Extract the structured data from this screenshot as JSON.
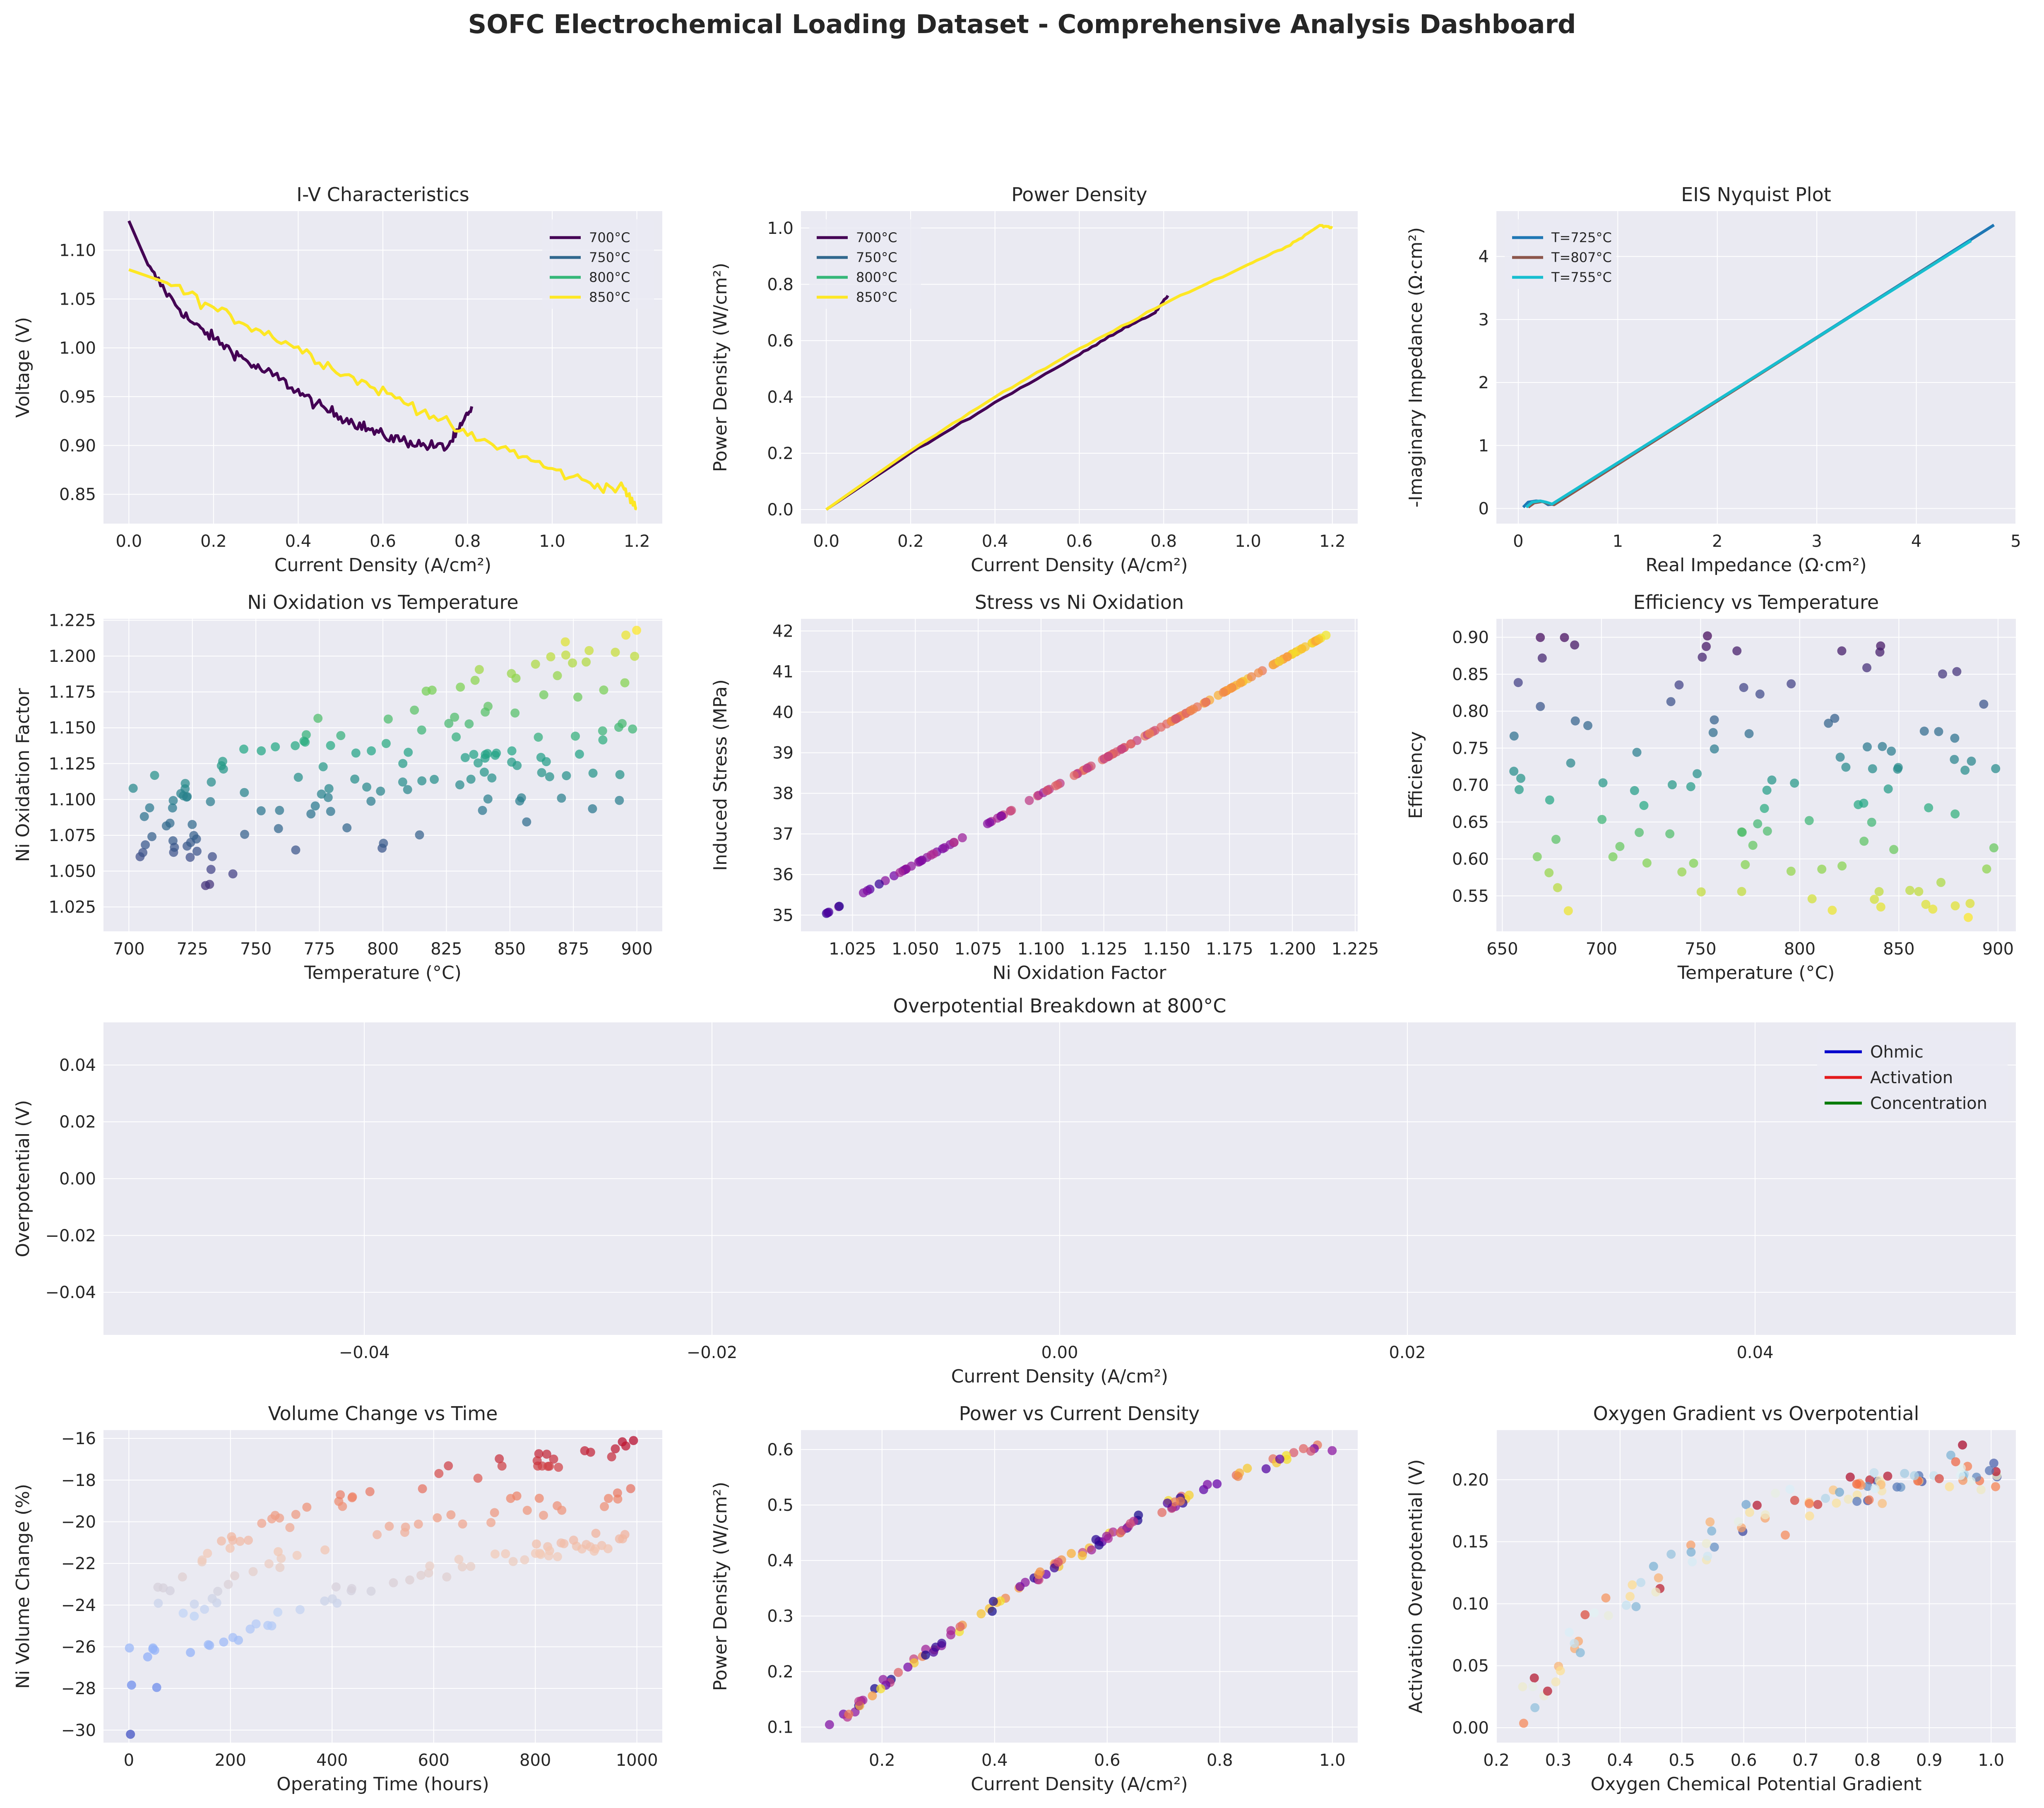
{
  "figure": {
    "title": "SOFC Electrochemical Loading Dataset - Comprehensive Analysis Dashboard",
    "background": "#ffffff",
    "panel_bg": "#eaeaf2",
    "grid_color": "#ffffff"
  },
  "chart_data": [
    {
      "id": "iv",
      "type": "line",
      "title": "I-V Characteristics",
      "xlabel": "Current Density (A/cm²)",
      "ylabel": "Voltage (V)",
      "xlim": [
        -0.06,
        1.26
      ],
      "ylim": [
        0.82,
        1.14
      ],
      "xticks": [
        0.0,
        0.2,
        0.4,
        0.6,
        0.8,
        1.0,
        1.2
      ],
      "yticks": [
        0.85,
        0.9,
        0.95,
        1.0,
        1.05,
        1.1
      ],
      "tick_decimals_x": 1,
      "tick_decimals_y": 2,
      "legend": "top-right",
      "series": [
        {
          "name": "700°C",
          "color": "#440154",
          "x": [
            0.0,
            0.05,
            0.1,
            0.15,
            0.2,
            0.25,
            0.3,
            0.35,
            0.4,
            0.45,
            0.5,
            0.55,
            0.6,
            0.65,
            0.7,
            0.75,
            0.78,
            0.81
          ],
          "y": [
            1.13,
            1.08,
            1.05,
            1.025,
            1.01,
            0.995,
            0.98,
            0.97,
            0.955,
            0.94,
            0.93,
            0.92,
            0.91,
            0.905,
            0.9,
            0.898,
            0.915,
            0.94
          ]
        },
        {
          "name": "750°C",
          "color": "#31688e",
          "x": [],
          "y": []
        },
        {
          "name": "800°C",
          "color": "#35b779",
          "x": [],
          "y": []
        },
        {
          "name": "850°C",
          "color": "#fde725",
          "x": [
            0.0,
            0.1,
            0.2,
            0.3,
            0.4,
            0.5,
            0.6,
            0.7,
            0.8,
            0.9,
            1.0,
            1.1,
            1.17,
            1.2
          ],
          "y": [
            1.08,
            1.065,
            1.04,
            1.02,
            1.0,
            0.975,
            0.955,
            0.935,
            0.91,
            0.895,
            0.875,
            0.86,
            0.855,
            0.835
          ]
        }
      ]
    },
    {
      "id": "power",
      "type": "line",
      "title": "Power Density",
      "xlabel": "Current Density (A/cm²)",
      "ylabel": "Power Density (W/cm²)",
      "xlim": [
        -0.06,
        1.26
      ],
      "ylim": [
        -0.05,
        1.06
      ],
      "xticks": [
        0.0,
        0.2,
        0.4,
        0.6,
        0.8,
        1.0,
        1.2
      ],
      "yticks": [
        0.0,
        0.2,
        0.4,
        0.6,
        0.8,
        1.0
      ],
      "tick_decimals_x": 1,
      "tick_decimals_y": 1,
      "legend": "top-left",
      "series": [
        {
          "name": "700°C",
          "color": "#440154",
          "x": [
            0.0,
            0.2,
            0.4,
            0.6,
            0.7,
            0.78,
            0.81
          ],
          "y": [
            0.0,
            0.2,
            0.38,
            0.55,
            0.64,
            0.7,
            0.76
          ]
        },
        {
          "name": "750°C",
          "color": "#31688e",
          "x": [],
          "y": []
        },
        {
          "name": "800°C",
          "color": "#35b779",
          "x": [],
          "y": []
        },
        {
          "name": "850°C",
          "color": "#fde725",
          "x": [
            0.0,
            0.2,
            0.4,
            0.6,
            0.8,
            1.0,
            1.1,
            1.17,
            1.2
          ],
          "y": [
            0.0,
            0.21,
            0.4,
            0.57,
            0.73,
            0.87,
            0.94,
            1.01,
            1.0
          ]
        }
      ]
    },
    {
      "id": "eis",
      "type": "line",
      "title": "EIS Nyquist Plot",
      "xlabel": "Real Impedance (Ω·cm²)",
      "ylabel": "-Imaginary Impedance (Ω·cm²)",
      "xlim": [
        -0.22,
        5.0
      ],
      "ylim": [
        -0.24,
        4.72
      ],
      "xticks": [
        0,
        1,
        2,
        3,
        4,
        5
      ],
      "yticks": [
        0,
        1,
        2,
        3,
        4
      ],
      "tick_decimals_x": 0,
      "tick_decimals_y": 0,
      "legend": "top-left",
      "series": [
        {
          "name": "T=725°C",
          "color": "#1f77b4",
          "x": [
            0.05,
            0.1,
            0.18,
            0.25,
            0.3,
            0.36,
            4.78
          ],
          "y": [
            0.02,
            0.1,
            0.12,
            0.11,
            0.06,
            0.07,
            4.5
          ]
        },
        {
          "name": "T=807°C",
          "color": "#8c564b",
          "x": [
            0.1,
            0.16,
            0.24,
            0.3,
            0.36,
            4.22
          ],
          "y": [
            0.02,
            0.09,
            0.11,
            0.08,
            0.06,
            3.93
          ]
        },
        {
          "name": "T=755°C",
          "color": "#17becf",
          "x": [
            0.08,
            0.14,
            0.22,
            0.28,
            0.34,
            4.55
          ],
          "y": [
            0.02,
            0.1,
            0.12,
            0.1,
            0.07,
            4.25
          ]
        }
      ]
    },
    {
      "id": "niox_temp",
      "type": "scatter",
      "title": "Ni Oxidation vs Temperature",
      "xlabel": "Temperature (°C)",
      "ylabel": "Ni Oxidation Factor",
      "xlim": [
        690,
        910
      ],
      "ylim": [
        1.008,
        1.226
      ],
      "xticks": [
        700,
        725,
        750,
        775,
        800,
        825,
        850,
        875,
        900
      ],
      "yticks": [
        1.025,
        1.05,
        1.075,
        1.1,
        1.125,
        1.15,
        1.175,
        1.2,
        1.225
      ],
      "tick_decimals_x": 0,
      "tick_decimals_y": 3,
      "colormap": "viridis"
    },
    {
      "id": "stress",
      "type": "scatter",
      "title": "Stress vs Ni Oxidation",
      "xlabel": "Ni Oxidation Factor",
      "ylabel": "Induced Stress (MPa)",
      "xlim": [
        1.0045,
        1.226
      ],
      "ylim": [
        34.6,
        42.3
      ],
      "xticks": [
        1.025,
        1.05,
        1.075,
        1.1,
        1.125,
        1.15,
        1.175,
        1.2,
        1.225
      ],
      "yticks": [
        35,
        36,
        37,
        38,
        39,
        40,
        41,
        42
      ],
      "tick_decimals_x": 3,
      "tick_decimals_y": 0,
      "colormap": "plasma",
      "x_range": [
        1.012,
        1.215
      ],
      "y_range": [
        34.95,
        41.95
      ]
    },
    {
      "id": "eff_temp",
      "type": "scatter",
      "title": "Efficiency vs Temperature",
      "xlabel": "Temperature (°C)",
      "ylabel": "Efficiency",
      "xlim": [
        647,
        909
      ],
      "ylim": [
        0.502,
        0.925
      ],
      "xticks": [
        650,
        700,
        750,
        800,
        850,
        900
      ],
      "yticks": [
        0.55,
        0.6,
        0.65,
        0.7,
        0.75,
        0.8,
        0.85,
        0.9
      ],
      "tick_decimals_x": 0,
      "tick_decimals_y": 2,
      "colormap": "viridis_r"
    },
    {
      "id": "overpot",
      "type": "line",
      "title": "Overpotential Breakdown at 800°C",
      "xlabel": "Current Density (A/cm²)",
      "ylabel": "Overpotential (V)",
      "xlim": [
        -0.055,
        0.055
      ],
      "ylim": [
        -0.055,
        0.055
      ],
      "xticks": [
        -0.04,
        -0.02,
        0.0,
        0.02,
        0.04
      ],
      "yticks": [
        -0.04,
        -0.02,
        0.0,
        0.02,
        0.04
      ],
      "tick_decimals_x": 2,
      "tick_decimals_y": 2,
      "legend": "top-right",
      "series": [
        {
          "name": "Ohmic",
          "color": "#0000cc",
          "x": [],
          "y": []
        },
        {
          "name": "Activation",
          "color": "#e31a1c",
          "x": [],
          "y": []
        },
        {
          "name": "Concentration",
          "color": "#007a00",
          "x": [],
          "y": []
        }
      ]
    },
    {
      "id": "volume",
      "type": "scatter",
      "title": "Volume Change vs Time",
      "xlabel": "Operating Time (hours)",
      "ylabel": "Ni Volume Change (%)",
      "xlim": [
        -50,
        1050
      ],
      "ylim": [
        -30.6,
        -15.6
      ],
      "xticks": [
        0,
        200,
        400,
        600,
        800,
        1000
      ],
      "yticks": [
        -30,
        -28,
        -26,
        -24,
        -22,
        -20,
        -18,
        -16
      ],
      "tick_decimals_x": 0,
      "tick_decimals_y": 0,
      "colormap": "coolwarm"
    },
    {
      "id": "pow_cd",
      "type": "scatter",
      "title": "Power vs Current Density",
      "xlabel": "Current Density (A/cm²)",
      "ylabel": "Power Density (W/cm²)",
      "xlim": [
        0.056,
        1.045
      ],
      "ylim": [
        0.072,
        0.635
      ],
      "xticks": [
        0.2,
        0.4,
        0.6,
        0.8,
        1.0
      ],
      "yticks": [
        0.1,
        0.2,
        0.3,
        0.4,
        0.5,
        0.6
      ],
      "tick_decimals_x": 1,
      "tick_decimals_y": 1,
      "colormap": "plasma"
    },
    {
      "id": "oxy",
      "type": "scatter",
      "title": "Oxygen Gradient vs Overpotential",
      "xlabel": "Oxygen Chemical Potential Gradient",
      "ylabel": "Activation Overpotential (V)",
      "xlim": [
        0.2,
        1.04
      ],
      "ylim": [
        -0.012,
        0.24
      ],
      "xticks": [
        0.2,
        0.3,
        0.4,
        0.5,
        0.6,
        0.7,
        0.8,
        0.9,
        1.0
      ],
      "yticks": [
        0.0,
        0.05,
        0.1,
        0.15,
        0.2
      ],
      "tick_decimals_x": 1,
      "tick_decimals_y": 2,
      "colormap": "RdYlBu"
    }
  ]
}
